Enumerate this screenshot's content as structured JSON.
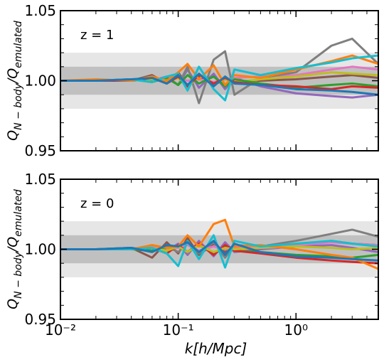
{
  "chart_data": [
    {
      "type": "line",
      "annotation": "z = 1",
      "ylabel": [
        "Q",
        "N − body",
        "/Q",
        "emulated"
      ],
      "log_x": true,
      "x_tick_labels": false,
      "xlim": [
        0.01,
        5
      ],
      "ylim": [
        0.95,
        1.05
      ],
      "xticks": [
        {
          "value": 0.01,
          "label": "10⁻²"
        },
        {
          "value": 0.1,
          "label": "10⁻¹"
        },
        {
          "value": 1,
          "label": "10⁰"
        }
      ],
      "x_minor_ticks": [
        0.02,
        0.03,
        0.04,
        0.05,
        0.06,
        0.07,
        0.08,
        0.09,
        0.2,
        0.3,
        0.4,
        0.5,
        0.6,
        0.7,
        0.8,
        0.9,
        2,
        3,
        4,
        5
      ],
      "yticks": [
        0.95,
        {
          "value": 1,
          "label": "1.00"
        },
        1.05
      ],
      "y_minor_ticks": [
        0.96,
        0.97,
        0.98,
        0.99,
        1.01,
        1.02,
        1.03,
        1.04
      ],
      "bands": [
        {
          "lower": 0.98,
          "upper": 1.02,
          "color": "#e6e6e6"
        },
        {
          "lower": 0.99,
          "upper": 1.01,
          "color": "#c0c0c0"
        }
      ],
      "x": [
        0.01,
        0.02,
        0.04,
        0.06,
        0.08,
        0.1,
        0.12,
        0.15,
        0.2,
        0.25,
        0.3,
        0.5,
        1,
        2,
        3,
        5
      ],
      "series": [
        {
          "color": "#9467bd",
          "values": [
            1.0,
            1.0,
            1.001,
            1.0,
            1.003,
            0.997,
            1.008,
            0.995,
            1.005,
            0.994,
            1.002,
            0.996,
            0.991,
            0.989,
            0.988,
            0.99
          ]
        },
        {
          "color": "#8c564b",
          "values": [
            1.0,
            1.0,
            1.0,
            1.004,
            0.998,
            1.006,
            0.996,
            1.003,
            0.997,
            1.001,
            0.999,
            1.0,
            1.001,
            1.003,
            1.004,
            1.002
          ]
        },
        {
          "color": "#e377c2",
          "values": [
            1.0,
            1.0,
            1.0,
            1.001,
            1.0,
            1.002,
            1.0,
            1.001,
            0.999,
            1.001,
            1.002,
            1.003,
            1.004,
            1.008,
            1.01,
            1.008
          ]
        },
        {
          "color": "#7f7f7f",
          "values": [
            1.0,
            1.0,
            1.001,
            1.0,
            1.002,
            0.997,
            1.01,
            0.984,
            1.015,
            1.021,
            0.99,
            1.002,
            1.006,
            1.025,
            1.03,
            1.012
          ]
        },
        {
          "color": "#bcbd22",
          "values": [
            1.0,
            1.0,
            1.0,
            1.001,
            0.999,
            1.002,
            0.995,
            1.004,
            0.998,
            1.001,
            0.999,
            1.001,
            1.003,
            1.006,
            1.005,
            1.004
          ]
        },
        {
          "color": "#2ca02c",
          "values": [
            1.0,
            1.0,
            1.001,
            0.999,
            1.002,
            0.997,
            1.004,
            0.998,
            1.003,
            0.996,
            1.001,
            0.998,
            0.995,
            0.997,
            0.998,
            0.996
          ]
        },
        {
          "color": "#d62728",
          "values": [
            1.0,
            1.0,
            1.0,
            1.002,
            0.998,
            1.003,
            0.996,
            1.004,
            0.998,
            1.002,
            0.999,
            0.997,
            0.996,
            0.994,
            0.996,
            0.995
          ]
        },
        {
          "color": "#ff7f0e",
          "values": [
            1.0,
            1.001,
            1.0,
            1.003,
            1.0,
            1.006,
            1.012,
            1.001,
            1.011,
            0.997,
            1.004,
            1.002,
            1.008,
            1.014,
            1.018,
            1.012
          ]
        },
        {
          "color": "#17becf",
          "values": [
            1.0,
            1.0,
            1.001,
            0.999,
            1.003,
            1.005,
            0.993,
            1.01,
            0.994,
            0.986,
            1.008,
            1.004,
            1.009,
            1.013,
            1.016,
            1.018
          ]
        },
        {
          "color": "#1f77b4",
          "values": [
            1.0,
            1.0,
            1.001,
            1.002,
            0.998,
            1.004,
            0.997,
            1.005,
            0.996,
            1.003,
            0.998,
            0.997,
            0.994,
            0.993,
            0.992,
            0.99
          ]
        }
      ]
    },
    {
      "type": "line",
      "annotation": "z = 0",
      "ylabel": [
        "Q",
        "N − body",
        "/Q",
        "emulated"
      ],
      "xlabel": "k[h/Mpc]",
      "log_x": true,
      "x_tick_labels": true,
      "xlim": [
        0.01,
        5
      ],
      "ylim": [
        0.95,
        1.05
      ],
      "xticks": [
        {
          "value": 0.01,
          "label": "10⁻²"
        },
        {
          "value": 0.1,
          "label": "10⁻¹"
        },
        {
          "value": 1,
          "label": "10⁰"
        }
      ],
      "x_minor_ticks": [
        0.02,
        0.03,
        0.04,
        0.05,
        0.06,
        0.07,
        0.08,
        0.09,
        0.2,
        0.3,
        0.4,
        0.5,
        0.6,
        0.7,
        0.8,
        0.9,
        2,
        3,
        4,
        5
      ],
      "yticks": [
        0.95,
        {
          "value": 1,
          "label": "1.00"
        },
        1.05
      ],
      "y_minor_ticks": [
        0.96,
        0.97,
        0.98,
        0.99,
        1.01,
        1.02,
        1.03,
        1.04
      ],
      "bands": [
        {
          "lower": 0.98,
          "upper": 1.02,
          "color": "#e6e6e6"
        },
        {
          "lower": 0.99,
          "upper": 1.01,
          "color": "#c0c0c0"
        }
      ],
      "x": [
        0.01,
        0.02,
        0.04,
        0.06,
        0.08,
        0.1,
        0.12,
        0.15,
        0.2,
        0.25,
        0.3,
        0.5,
        1,
        2,
        3,
        5
      ],
      "series": [
        {
          "color": "#8c564b",
          "values": [
            1.0,
            1.0,
            1.001,
            0.994,
            1.005,
            0.997,
            1.008,
            0.996,
            1.004,
            0.998,
            1.002,
            1.0,
            1.003,
            1.006,
            1.004,
            1.003
          ]
        },
        {
          "color": "#9467bd",
          "values": [
            1.0,
            1.0,
            1.0,
            1.001,
            0.999,
            1.004,
            0.996,
            1.006,
            0.995,
            1.005,
            0.998,
            1.0,
            1.002,
            1.003,
            1.001,
            0.998
          ]
        },
        {
          "color": "#7f7f7f",
          "values": [
            1.0,
            1.0,
            1.001,
            0.999,
            1.002,
            0.998,
            1.004,
            0.997,
            1.005,
            0.994,
            1.003,
            1.002,
            1.006,
            1.011,
            1.014,
            1.009
          ]
        },
        {
          "color": "#e377c2",
          "values": [
            1.0,
            1.0,
            1.0,
            1.002,
            1.0,
            1.001,
            1.003,
            0.999,
            1.002,
            1.0,
            1.001,
            1.002,
            1.003,
            1.005,
            1.004,
            1.003
          ]
        },
        {
          "color": "#2ca02c",
          "values": [
            1.0,
            1.0,
            1.0,
            0.999,
            1.001,
            1.002,
            0.998,
            1.003,
            0.997,
            1.002,
            0.999,
            0.998,
            0.996,
            0.995,
            0.994,
            0.996
          ]
        },
        {
          "color": "#d62728",
          "values": [
            1.0,
            1.0,
            1.0,
            1.001,
            0.997,
            1.003,
            0.998,
            1.004,
            0.996,
            1.003,
            0.999,
            0.997,
            0.994,
            0.992,
            0.991,
            0.99
          ]
        },
        {
          "color": "#bcbd22",
          "values": [
            1.0,
            1.0,
            1.0,
            1.001,
            0.999,
            1.002,
            0.998,
            1.003,
            0.998,
            1.001,
            1.0,
            1.001,
            1.002,
            1.001,
            1.0,
            1.001
          ]
        },
        {
          "color": "#ff7f0e",
          "values": [
            1.0,
            1.0,
            1.0,
            1.003,
            1.001,
            1.002,
            1.01,
            1.002,
            1.018,
            1.021,
            1.002,
            1.003,
            1.0,
            0.996,
            0.994,
            0.986
          ]
        },
        {
          "color": "#17becf",
          "values": [
            1.0,
            1.0,
            1.0,
            1.001,
            0.997,
            0.988,
            1.006,
            0.993,
            1.01,
            0.987,
            1.006,
            1.002,
            1.004,
            1.006,
            1.004,
            1.002
          ]
        },
        {
          "color": "#1f77b4",
          "values": [
            1.0,
            1.0,
            1.001,
            0.998,
            1.003,
            1.002,
            1.005,
            0.998,
            1.006,
            0.996,
            1.004,
            0.998,
            0.995,
            0.994,
            0.993,
            0.992
          ]
        }
      ]
    }
  ]
}
